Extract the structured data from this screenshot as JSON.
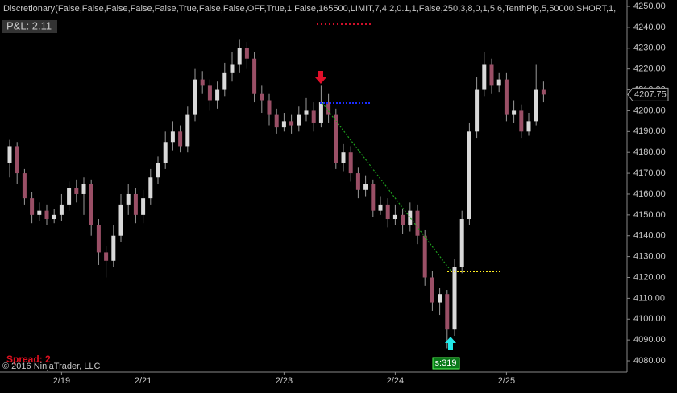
{
  "chart_data": {
    "type": "candlestick",
    "title": "Discretionary(False,False,False,False,False,True,False,False,OFF,True,1,False,165500,LIMIT,7,4,2,0.1,1,False,250,3,8,0,1,5,6,TenthPip,5,50000,SHORT,1,",
    "pnl": "P&L: 2.11",
    "spread": "Spread: 2",
    "copyright": "© 2016 NinjaTrader, LLC",
    "signal": "s:319",
    "up_color": "#d9d9d9",
    "down_color": "#9a4f66",
    "categories": [
      null,
      null,
      null,
      null,
      null,
      null,
      null,
      "2/19",
      null,
      null,
      null,
      null,
      null,
      null,
      null,
      null,
      null,
      null,
      "2/21",
      null,
      null,
      null,
      null,
      null,
      null,
      null,
      null,
      null,
      null,
      null,
      null,
      null,
      null,
      null,
      null,
      null,
      null,
      "2/23",
      null,
      null,
      null,
      null,
      null,
      null,
      null,
      null,
      null,
      null,
      null,
      null,
      null,
      null,
      "2/24",
      null,
      null,
      null,
      null,
      null,
      null,
      null,
      null,
      null,
      null,
      null,
      null,
      null,
      null,
      "2/25",
      null,
      null,
      null,
      null,
      null
    ],
    "ohlc": {
      "open": [
        4175,
        4183,
        4170,
        4158,
        4150,
        4152,
        4148,
        4150,
        4155,
        4163,
        4160,
        4165,
        4145,
        4132,
        4128,
        4140,
        4155,
        4160,
        4150,
        4158,
        4168,
        4175,
        4185,
        4190,
        4183,
        4198,
        4215,
        4212,
        4205,
        4210,
        4218,
        4222,
        4230,
        4225,
        4208,
        4205,
        4198,
        4192,
        4195,
        4193,
        4198,
        4200,
        4194,
        4204,
        4198,
        4175,
        4180,
        4170,
        4162,
        4165,
        4152,
        4155,
        4148,
        4150,
        4145,
        4152,
        4140,
        4120,
        4108,
        4112,
        4095,
        4125,
        4148,
        4190,
        4210,
        4222,
        4212,
        4215,
        4198,
        4200,
        4190,
        4195,
        4210
      ],
      "high": [
        4186,
        4185,
        4172,
        4161,
        4156,
        4155,
        4153,
        4160,
        4166,
        4167,
        4168,
        4167,
        4148,
        4135,
        4145,
        4160,
        4165,
        4163,
        4162,
        4172,
        4178,
        4190,
        4195,
        4193,
        4202,
        4220,
        4219,
        4215,
        4214,
        4223,
        4228,
        4234,
        4233,
        4228,
        4212,
        4208,
        4201,
        4199,
        4198,
        4202,
        4206,
        4204,
        4212,
        4208,
        4201,
        4184,
        4183,
        4173,
        4169,
        4167,
        4159,
        4158,
        4155,
        4153,
        4156,
        4155,
        4143,
        4123,
        4115,
        4114,
        4129,
        4152,
        4194,
        4216,
        4228,
        4225,
        4218,
        4218,
        4205,
        4203,
        4199,
        4222,
        4214
      ],
      "low": [
        4168,
        4165,
        4155,
        4146,
        4147,
        4145,
        4146,
        4147,
        4152,
        4156,
        4150,
        4140,
        4126,
        4120,
        4125,
        4137,
        4150,
        4146,
        4146,
        4155,
        4165,
        4172,
        4181,
        4180,
        4180,
        4195,
        4208,
        4200,
        4201,
        4207,
        4214,
        4218,
        4220,
        4204,
        4199,
        4193,
        4189,
        4190,
        4189,
        4190,
        4195,
        4190,
        4192,
        4194,
        4172,
        4171,
        4166,
        4158,
        4159,
        4149,
        4150,
        4144,
        4145,
        4141,
        4142,
        4136,
        4116,
        4104,
        4102,
        4086,
        4092,
        4122,
        4145,
        4187,
        4207,
        4208,
        4209,
        4195,
        4194,
        4187,
        4188,
        4193,
        4204
      ],
      "close": [
        4183,
        4170,
        4158,
        4150,
        4152,
        4148,
        4150,
        4155,
        4163,
        4160,
        4165,
        4145,
        4132,
        4128,
        4140,
        4155,
        4160,
        4150,
        4158,
        4168,
        4175,
        4185,
        4190,
        4183,
        4198,
        4215,
        4212,
        4205,
        4210,
        4218,
        4222,
        4230,
        4225,
        4208,
        4205,
        4198,
        4192,
        4195,
        4193,
        4198,
        4200,
        4194,
        4204,
        4198,
        4175,
        4180,
        4170,
        4162,
        4165,
        4152,
        4155,
        4148,
        4150,
        4145,
        4152,
        4140,
        4120,
        4108,
        4112,
        4095,
        4125,
        4148,
        4190,
        4210,
        4222,
        4212,
        4215,
        4198,
        4200,
        4190,
        4195,
        4210,
        4207.75
      ]
    },
    "ylim": [
      4074.6,
      4253.1
    ],
    "yticks": [
      {
        "value": 4080,
        "label": "4080.00"
      },
      {
        "value": 4090,
        "label": "4090.00"
      },
      {
        "value": 4100,
        "label": "4100.00"
      },
      {
        "value": 4110,
        "label": "4110.00"
      },
      {
        "value": 4120,
        "label": "4120.00"
      },
      {
        "value": 4130,
        "label": "4130.00"
      },
      {
        "value": 4140,
        "label": "4140.00"
      },
      {
        "value": 4150,
        "label": "4150.00"
      },
      {
        "value": 4160,
        "label": "4160.00"
      },
      {
        "value": 4170,
        "label": "4170.00"
      },
      {
        "value": 4180,
        "label": "4180.00"
      },
      {
        "value": 4190,
        "label": "4190.00"
      },
      {
        "value": 4200,
        "label": "4200.00"
      },
      {
        "value": 4210,
        "label": "4210.00"
      },
      {
        "value": 4220,
        "label": "4220.00"
      },
      {
        "value": 4230,
        "label": "4230.00"
      },
      {
        "value": 4240,
        "label": "4240.00"
      },
      {
        "value": 4250,
        "label": "4250.00"
      }
    ]
  }
}
